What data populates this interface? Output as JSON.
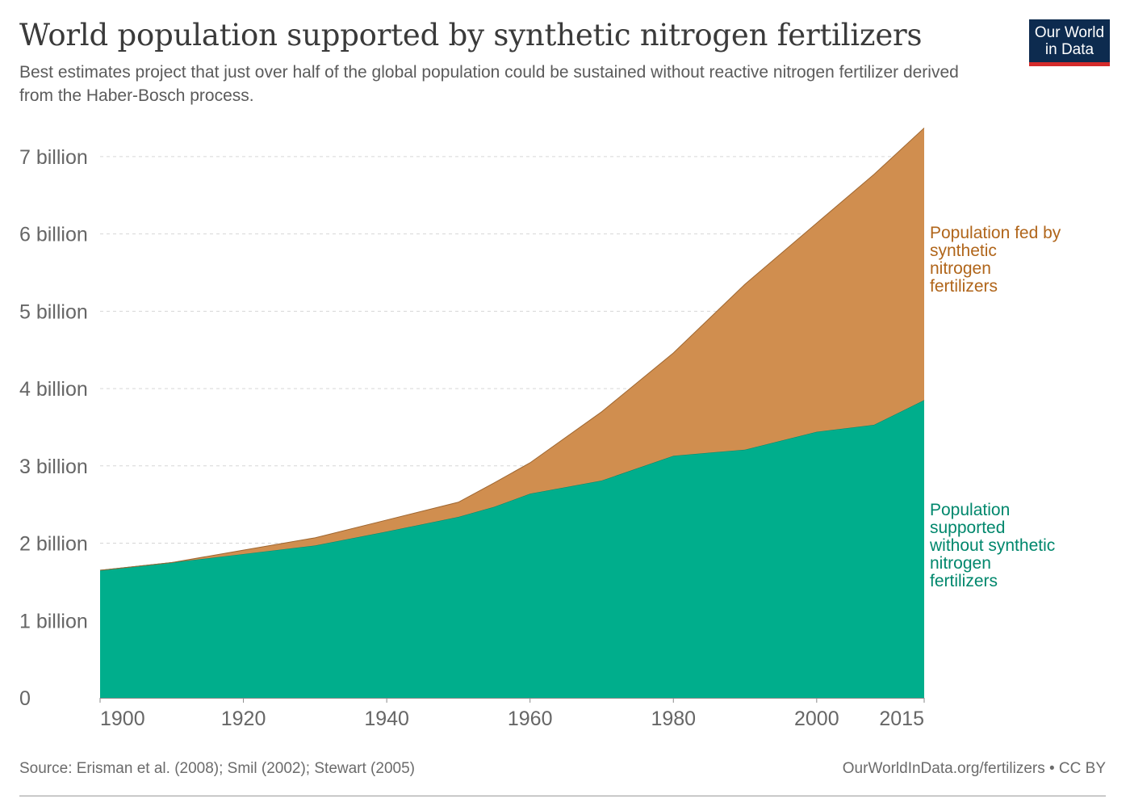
{
  "chart_data": {
    "type": "area",
    "stacked": true,
    "title": "World population supported by synthetic nitrogen fertilizers",
    "subtitle": "Best estimates project that just over half of the global population could be sustained without reactive nitrogen fertilizer derived from the Haber-Bosch process.",
    "x": [
      1900,
      1910,
      1920,
      1930,
      1940,
      1950,
      1955,
      1960,
      1970,
      1980,
      1990,
      2000,
      2008,
      2015
    ],
    "series": [
      {
        "name": "Population supported without synthetic nitrogen fertilizers",
        "label_lines": [
          "Population",
          "supported",
          "without synthetic",
          "nitrogen",
          "fertilizers"
        ],
        "color": "#00ae8c",
        "values": [
          1.65,
          1.75,
          1.86,
          1.97,
          2.15,
          2.34,
          2.47,
          2.64,
          2.81,
          3.13,
          3.21,
          3.44,
          3.53,
          3.85
        ]
      },
      {
        "name": "Population fed by synthetic nitrogen fertilizers",
        "label_lines": [
          "Population fed by",
          "synthetic",
          "nitrogen",
          "fertilizers"
        ],
        "color": "#d08e4f",
        "values": [
          0,
          0,
          0.05,
          0.1,
          0.15,
          0.19,
          0.31,
          0.4,
          0.89,
          1.33,
          2.14,
          2.7,
          3.24,
          3.52
        ]
      }
    ],
    "xlim": [
      1900,
      2015
    ],
    "ylim": [
      0,
      7.5
    ],
    "xticks": [
      {
        "value": 1900,
        "label": "1900"
      },
      {
        "value": 1920,
        "label": "1920"
      },
      {
        "value": 1940,
        "label": "1940"
      },
      {
        "value": 1960,
        "label": "1960"
      },
      {
        "value": 1980,
        "label": "1980"
      },
      {
        "value": 2000,
        "label": "2000"
      },
      {
        "value": 2015,
        "label": "2015"
      }
    ],
    "yticks": [
      {
        "value": 0,
        "label": "0"
      },
      {
        "value": 1,
        "label": "1 billion"
      },
      {
        "value": 2,
        "label": "2 billion"
      },
      {
        "value": 3,
        "label": "3 billion"
      },
      {
        "value": 4,
        "label": "4 billion"
      },
      {
        "value": 5,
        "label": "5 billion"
      },
      {
        "value": 6,
        "label": "6 billion"
      },
      {
        "value": 7,
        "label": "7 billion"
      }
    ],
    "grid": "horizontal dashed",
    "legend": "right, inline labels"
  },
  "logo": {
    "line1": "Our World",
    "line2": "in Data"
  },
  "footer": {
    "source": "Source: Erisman et al. (2008); Smil (2002); Stewart (2005)",
    "credit": "OurWorldInData.org/fertilizers • CC BY"
  }
}
